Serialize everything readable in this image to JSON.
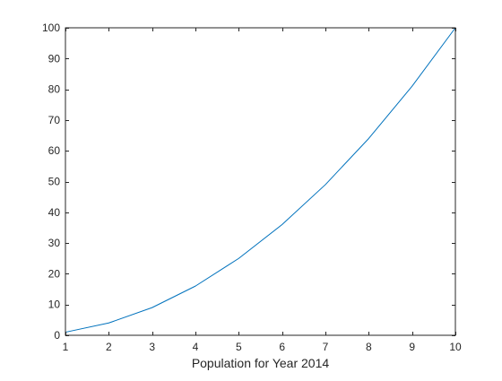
{
  "chart_data": {
    "type": "line",
    "title": "",
    "xlabel": "Population for Year 2014",
    "ylabel": "",
    "xlim": [
      1,
      10
    ],
    "ylim": [
      0,
      100
    ],
    "x_ticks": [
      1,
      2,
      3,
      4,
      5,
      6,
      7,
      8,
      9,
      10
    ],
    "y_ticks": [
      0,
      10,
      20,
      30,
      40,
      50,
      60,
      70,
      80,
      90,
      100
    ],
    "grid": false,
    "legend": false,
    "series": [
      {
        "color": "#0072bd",
        "x": [
          1,
          2,
          3,
          4,
          5,
          6,
          7,
          8,
          9,
          10
        ],
        "y": [
          1,
          4,
          9,
          16,
          25,
          36,
          49,
          64,
          81,
          100
        ]
      }
    ]
  },
  "colors": {
    "axis": "#262626",
    "background": "#ffffff"
  }
}
